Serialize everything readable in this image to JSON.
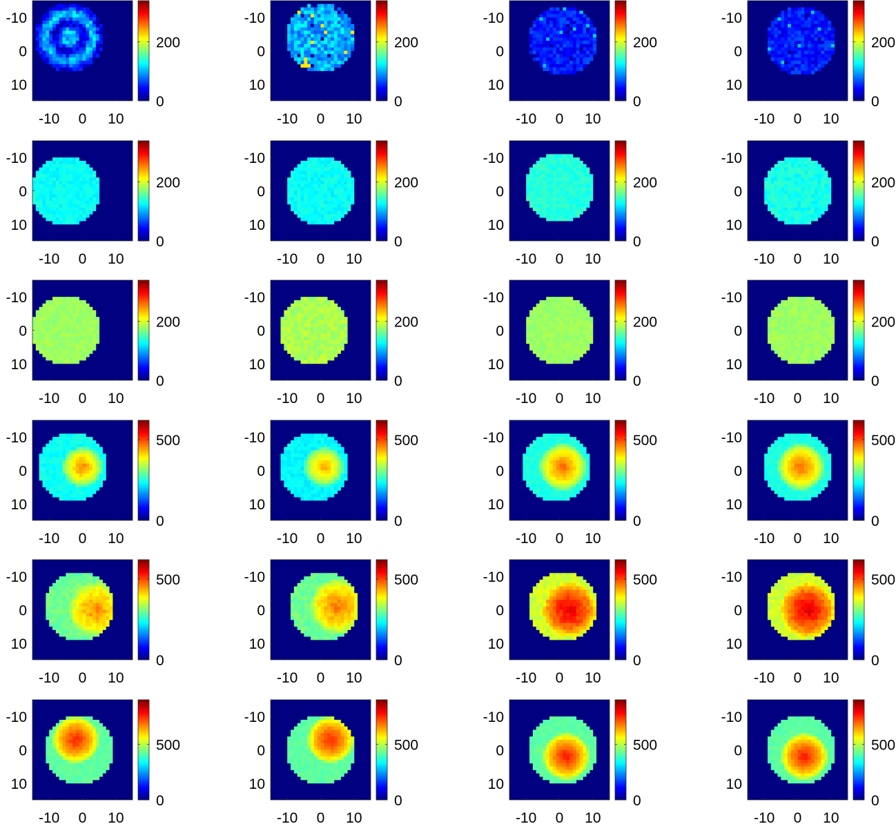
{
  "chart_data": {
    "type": "heatmap",
    "layout": {
      "rows": 6,
      "cols": 4
    },
    "colormap": "jet",
    "axis_ticks": {
      "x": [
        {
          "value": -10,
          "label": "-10"
        },
        {
          "value": 0,
          "label": "0"
        },
        {
          "value": 10,
          "label": "10"
        }
      ],
      "y": [
        {
          "value": -10,
          "label": "-10"
        },
        {
          "value": 0,
          "label": "0"
        },
        {
          "value": 10,
          "label": "10"
        }
      ]
    },
    "xlim": [
      -15,
      15
    ],
    "ylim": [
      -15,
      15
    ],
    "y_direction": "reversed",
    "background_value": 0,
    "disc_radius": 10.5,
    "row_colorbars": [
      {
        "clim": [
          0,
          340
        ],
        "ticks": [
          {
            "value": 0,
            "label": "0"
          },
          {
            "value": 200,
            "label": "200"
          }
        ]
      },
      {
        "clim": [
          0,
          340
        ],
        "ticks": [
          {
            "value": 0,
            "label": "0"
          },
          {
            "value": 200,
            "label": "200"
          }
        ]
      },
      {
        "clim": [
          0,
          340
        ],
        "ticks": [
          {
            "value": 0,
            "label": "0"
          },
          {
            "value": 200,
            "label": "200"
          }
        ]
      },
      {
        "clim": [
          0,
          620
        ],
        "ticks": [
          {
            "value": 0,
            "label": "0"
          },
          {
            "value": 500,
            "label": "500"
          }
        ]
      },
      {
        "clim": [
          0,
          620
        ],
        "ticks": [
          {
            "value": 0,
            "label": "0"
          },
          {
            "value": 500,
            "label": "500"
          }
        ]
      },
      {
        "clim": [
          0,
          900
        ],
        "ticks": [
          {
            "value": 0,
            "label": "0"
          },
          {
            "value": 500,
            "label": "500"
          }
        ]
      }
    ],
    "panels": [
      {
        "row": 0,
        "col": 0,
        "disc_center": [
          -4,
          -4
        ],
        "base_value": 70,
        "noise": 25,
        "pattern": "rings",
        "hot_center": null,
        "hot_value": null,
        "hot_radius": null
      },
      {
        "row": 0,
        "col": 1,
        "disc_center": [
          0,
          -4
        ],
        "base_value": 100,
        "noise": 30,
        "pattern": "noisy",
        "hot_center": null,
        "hot_value": null,
        "hot_radius": null
      },
      {
        "row": 0,
        "col": 2,
        "disc_center": [
          1,
          -3
        ],
        "base_value": 50,
        "noise": 20,
        "pattern": "noisy",
        "hot_center": null,
        "hot_value": null,
        "hot_radius": null
      },
      {
        "row": 0,
        "col": 3,
        "disc_center": [
          1,
          -3
        ],
        "base_value": 50,
        "noise": 20,
        "pattern": "noisy",
        "hot_center": null,
        "hot_value": null,
        "hot_radius": null
      },
      {
        "row": 1,
        "col": 0,
        "disc_center": [
          -5,
          0
        ],
        "base_value": 130,
        "noise": 10,
        "pattern": "uniform",
        "hot_center": null,
        "hot_value": null,
        "hot_radius": null
      },
      {
        "row": 1,
        "col": 1,
        "disc_center": [
          0,
          0
        ],
        "base_value": 130,
        "noise": 10,
        "pattern": "uniform",
        "hot_center": null,
        "hot_value": null,
        "hot_radius": null
      },
      {
        "row": 1,
        "col": 2,
        "disc_center": [
          0,
          -1
        ],
        "base_value": 140,
        "noise": 10,
        "pattern": "uniform",
        "hot_center": null,
        "hot_value": null,
        "hot_radius": null
      },
      {
        "row": 1,
        "col": 3,
        "disc_center": [
          0,
          0
        ],
        "base_value": 135,
        "noise": 12,
        "pattern": "uniform",
        "hot_center": null,
        "hot_value": null,
        "hot_radius": null
      },
      {
        "row": 2,
        "col": 0,
        "disc_center": [
          -5,
          0
        ],
        "base_value": 180,
        "noise": 8,
        "pattern": "uniform",
        "hot_center": null,
        "hot_value": null,
        "hot_radius": null
      },
      {
        "row": 2,
        "col": 1,
        "disc_center": [
          -2,
          0
        ],
        "base_value": 185,
        "noise": 12,
        "pattern": "uniform",
        "hot_center": null,
        "hot_value": null,
        "hot_radius": null
      },
      {
        "row": 2,
        "col": 2,
        "disc_center": [
          0,
          0
        ],
        "base_value": 180,
        "noise": 8,
        "pattern": "uniform",
        "hot_center": null,
        "hot_value": null,
        "hot_radius": null
      },
      {
        "row": 2,
        "col": 3,
        "disc_center": [
          1,
          0
        ],
        "base_value": 180,
        "noise": 8,
        "pattern": "uniform",
        "hot_center": null,
        "hot_value": null,
        "hot_radius": null
      },
      {
        "row": 3,
        "col": 0,
        "disc_center": [
          -3,
          -1
        ],
        "base_value": 240,
        "noise": 15,
        "pattern": "hot",
        "hot_center": [
          0,
          -1
        ],
        "hot_value": 460,
        "hot_radius": 6
      },
      {
        "row": 3,
        "col": 1,
        "disc_center": [
          -2,
          -1
        ],
        "base_value": 230,
        "noise": 15,
        "pattern": "hot",
        "hot_center": [
          1,
          -1
        ],
        "hot_value": 440,
        "hot_radius": 6
      },
      {
        "row": 3,
        "col": 2,
        "disc_center": [
          -1,
          -1
        ],
        "base_value": 250,
        "noise": 12,
        "pattern": "hot",
        "hot_center": [
          1,
          -1
        ],
        "hot_value": 480,
        "hot_radius": 7
      },
      {
        "row": 3,
        "col": 3,
        "disc_center": [
          0,
          -1
        ],
        "base_value": 250,
        "noise": 12,
        "pattern": "hot",
        "hot_center": [
          1,
          -1
        ],
        "hot_value": 480,
        "hot_radius": 7
      },
      {
        "row": 4,
        "col": 0,
        "disc_center": [
          -1,
          -1
        ],
        "base_value": 300,
        "noise": 20,
        "pattern": "hot",
        "hot_center": [
          4,
          0
        ],
        "hot_value": 460,
        "hot_radius": 8
      },
      {
        "row": 4,
        "col": 1,
        "disc_center": [
          1,
          -1
        ],
        "base_value": 300,
        "noise": 20,
        "pattern": "hot",
        "hot_center": [
          5,
          -1
        ],
        "hot_value": 470,
        "hot_radius": 8
      },
      {
        "row": 4,
        "col": 2,
        "disc_center": [
          1,
          -1
        ],
        "base_value": 360,
        "noise": 20,
        "pattern": "hot",
        "hot_center": [
          3,
          0
        ],
        "hot_value": 560,
        "hot_radius": 8
      },
      {
        "row": 4,
        "col": 3,
        "disc_center": [
          1,
          -1
        ],
        "base_value": 360,
        "noise": 20,
        "pattern": "hot",
        "hot_center": [
          3,
          0
        ],
        "hot_value": 560,
        "hot_radius": 8
      },
      {
        "row": 5,
        "col": 0,
        "disc_center": [
          -1,
          0
        ],
        "base_value": 420,
        "noise": 15,
        "pattern": "hot",
        "hot_center": [
          -2,
          -3
        ],
        "hot_value": 760,
        "hot_radius": 7
      },
      {
        "row": 5,
        "col": 1,
        "disc_center": [
          0,
          0
        ],
        "base_value": 420,
        "noise": 15,
        "pattern": "hot",
        "hot_center": [
          3,
          -3
        ],
        "hot_value": 760,
        "hot_radius": 7
      },
      {
        "row": 5,
        "col": 2,
        "disc_center": [
          1,
          0
        ],
        "base_value": 420,
        "noise": 15,
        "pattern": "hot",
        "hot_center": [
          2,
          2
        ],
        "hot_value": 770,
        "hot_radius": 7
      },
      {
        "row": 5,
        "col": 3,
        "disc_center": [
          1,
          0
        ],
        "base_value": 420,
        "noise": 15,
        "pattern": "hot",
        "hot_center": [
          2,
          2
        ],
        "hot_value": 770,
        "hot_radius": 7
      }
    ]
  }
}
